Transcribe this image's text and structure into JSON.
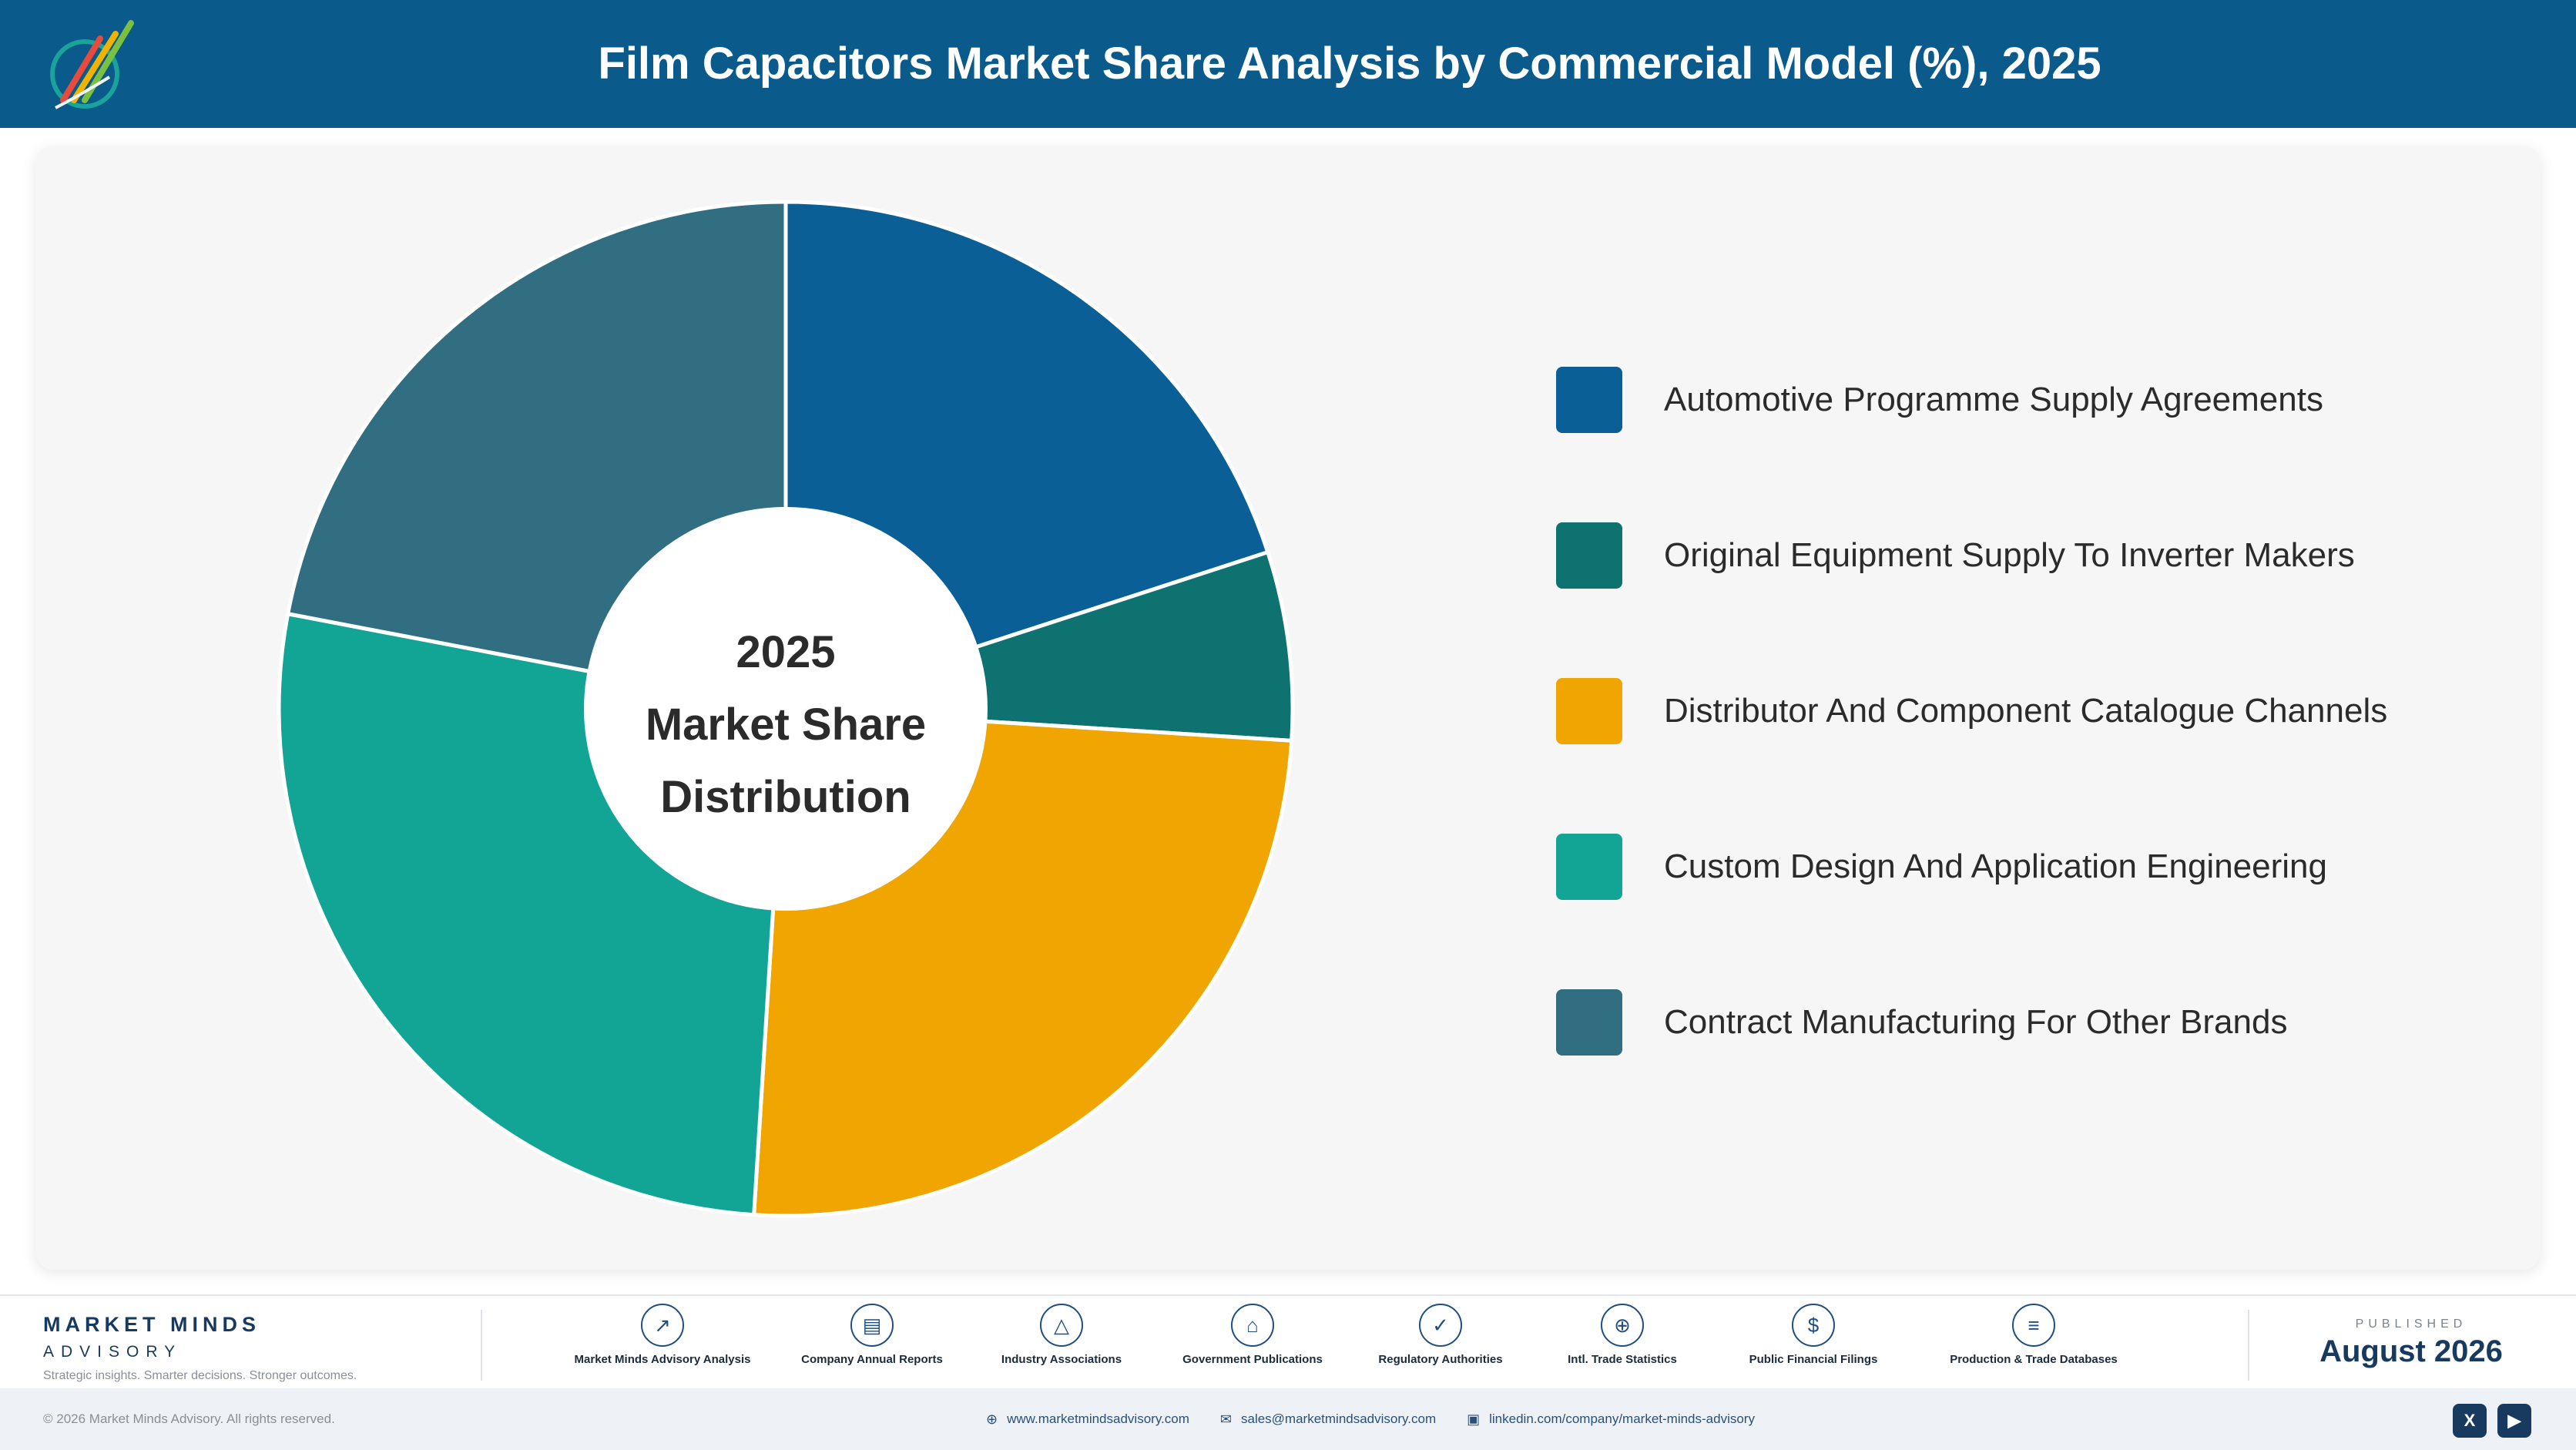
{
  "header": {
    "title": "Film Capacitors Market Share Analysis by Commercial Model (%), 2025",
    "background": "#0a5a8c"
  },
  "chart_data": {
    "type": "pie",
    "variant": "donut",
    "title": "Film Capacitors Market Share Analysis by Commercial Model (%), 2025",
    "center_label": [
      "2025",
      "Market Share",
      "Distribution"
    ],
    "legend_position": "right",
    "series": [
      {
        "name": "Automotive Programme Supply Agreements",
        "value": 20.0,
        "color": "#0a6096"
      },
      {
        "name": "Original Equipment Supply To Inverter Makers",
        "value": 6.0,
        "color": "#0e7270"
      },
      {
        "name": "Distributor And Component Catalogue Channels",
        "value": 25.0,
        "color": "#f0a500"
      },
      {
        "name": "Custom Design And Application Engineering",
        "value": 27.0,
        "color": "#12a596"
      },
      {
        "name": "Contract Manufacturing For Other Brands",
        "value": 22.0,
        "color": "#316e82"
      }
    ]
  },
  "footer": {
    "brand_name": "MARKET MINDS",
    "brand_sub": "ADVISORY",
    "tagline": "Strategic insights. Smarter decisions. Stronger outcomes.",
    "sources": [
      {
        "label": "Market Minds Advisory Analysis",
        "icon": "chart-line-icon",
        "glyph": "↗"
      },
      {
        "label": "Company Annual Reports",
        "icon": "document-icon",
        "glyph": "▤"
      },
      {
        "label": "Industry Associations",
        "icon": "network-icon",
        "glyph": "△"
      },
      {
        "label": "Government Publications",
        "icon": "government-building-icon",
        "glyph": "⌂"
      },
      {
        "label": "Regulatory Authorities",
        "icon": "shield-icon",
        "glyph": "✓"
      },
      {
        "label": "Intl. Trade Statistics",
        "icon": "globe-icon",
        "glyph": "⊕"
      },
      {
        "label": "Public Financial Filings",
        "icon": "currency-icon",
        "glyph": "$"
      },
      {
        "label": "Production & Trade Databases",
        "icon": "database-icon",
        "glyph": "≡"
      }
    ],
    "published_label": "PUBLISHED",
    "published_date": "August 2026"
  },
  "bottom_bar": {
    "copyright": "© 2026 Market Minds Advisory. All rights reserved.",
    "website": "www.marketmindsadvisory.com",
    "email": "sales@marketmindsadvisory.com",
    "linkedin": "linkedin.com/company/market-minds-advisory",
    "social_x": "X",
    "social_youtube": "▶"
  }
}
